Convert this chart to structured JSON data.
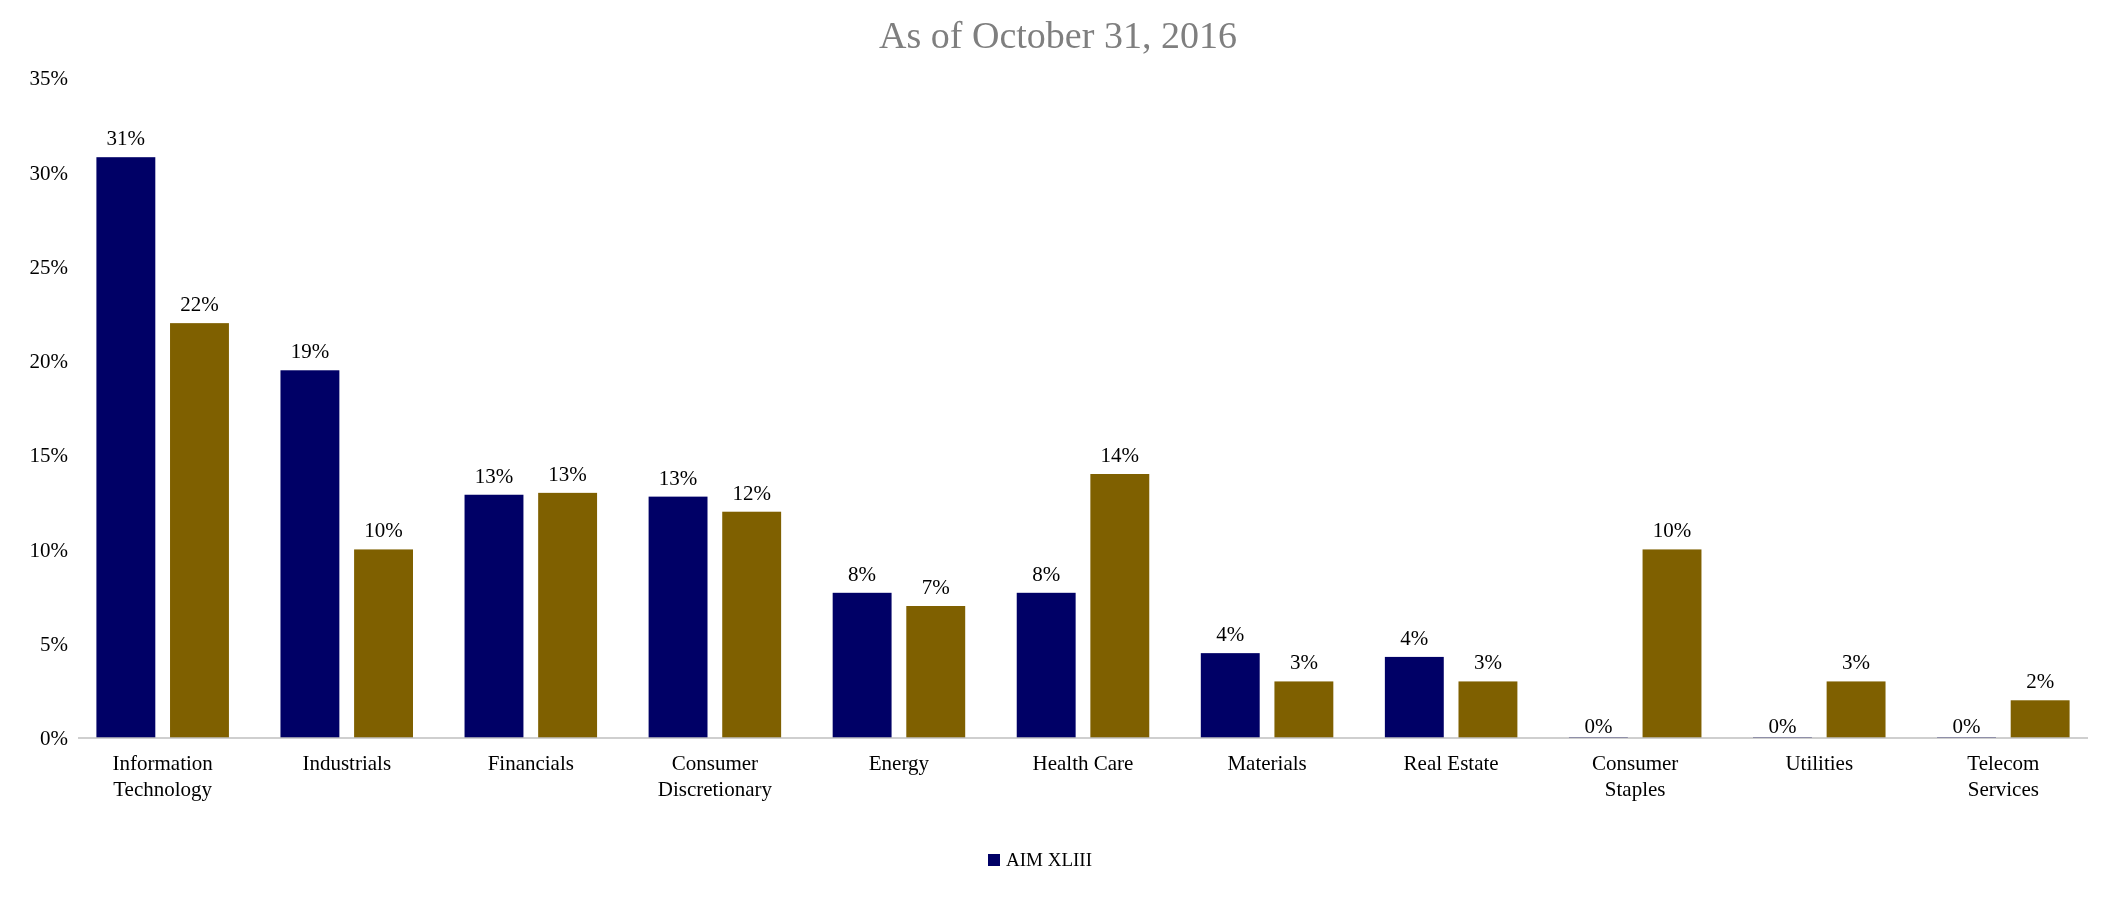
{
  "chart_data": {
    "type": "bar",
    "title": "As of October 31, 2016",
    "categories": [
      "Information Technology",
      "Industrials",
      "Financials",
      "Consumer Discretionary",
      "Energy",
      "Health Care",
      "Materials",
      "Real Estate",
      "Consumer Staples",
      "Utilities",
      "Telecom Services"
    ],
    "series": [
      {
        "name": "AIM XLIII",
        "color": "#000066",
        "values": [
          30.8,
          19.5,
          12.9,
          12.8,
          7.7,
          7.7,
          4.5,
          4.3,
          0,
          0,
          0
        ],
        "value_labels": [
          "31%",
          "19%",
          "13%",
          "13%",
          "8%",
          "8%",
          "4%",
          "4%",
          "0%",
          "0%",
          "0%"
        ]
      },
      {
        "color": "#7f6000",
        "values": [
          22,
          10,
          13,
          12,
          7,
          14,
          3,
          3,
          10,
          3,
          2
        ],
        "value_labels": [
          "22%",
          "10%",
          "13%",
          "12%",
          "7%",
          "14%",
          "3%",
          "3%",
          "10%",
          "3%",
          "2%"
        ]
      }
    ],
    "ylim": [
      0,
      35
    ],
    "yticks": [
      {
        "value": 0,
        "label": "0%"
      },
      {
        "value": 5,
        "label": "5%"
      },
      {
        "value": 10,
        "label": "10%"
      },
      {
        "value": 15,
        "label": "15%"
      },
      {
        "value": 20,
        "label": "20%"
      },
      {
        "value": 25,
        "label": "25%"
      },
      {
        "value": 30,
        "label": "30%"
      },
      {
        "value": 35,
        "label": "35%"
      }
    ],
    "grid": false,
    "legend": "bottom"
  }
}
